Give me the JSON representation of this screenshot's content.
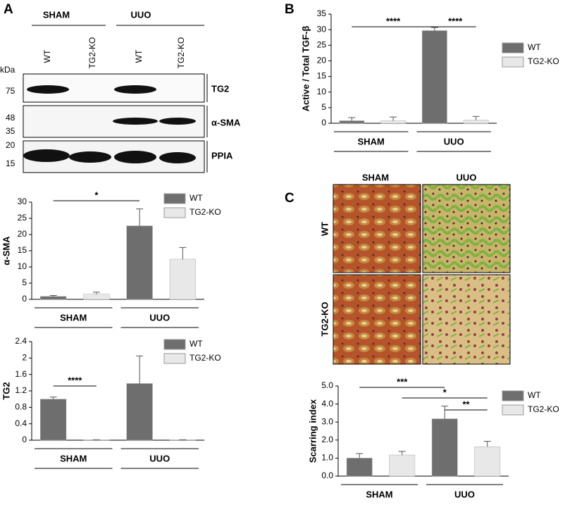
{
  "panels": [
    "A",
    "B",
    "C"
  ],
  "blot": {
    "groups": [
      "SHAM",
      "UUO"
    ],
    "lanes": [
      "WT",
      "TG2-KO",
      "WT",
      "TG2-KO"
    ],
    "unit": "kDa",
    "markers": [
      75,
      48,
      35,
      20,
      15
    ],
    "bands": [
      "TG2",
      "α-SMA",
      "PPIA"
    ]
  },
  "histology": {
    "columns": [
      "SHAM",
      "UUO"
    ],
    "rows": [
      "WT",
      "TG2-KO"
    ]
  },
  "chart_data": [
    {
      "type": "bar",
      "ylabel": "α-SMA",
      "categories": [
        "SHAM",
        "UUO"
      ],
      "series": [
        {
          "name": "WT",
          "color": "#6e6e6e",
          "values": [
            0.9,
            22.7
          ],
          "errors": [
            0.3,
            5.2
          ]
        },
        {
          "name": "TG2-KO",
          "color": "#e8e8e8",
          "values": [
            1.6,
            12.4
          ],
          "errors": [
            0.6,
            3.6
          ]
        }
      ],
      "ylim": [
        0,
        30
      ],
      "yticks": [
        0,
        5,
        10,
        15,
        20,
        25,
        30
      ],
      "annotations": [
        "*"
      ]
    },
    {
      "type": "bar",
      "ylabel": "TG2",
      "categories": [
        "SHAM",
        "UUO"
      ],
      "series": [
        {
          "name": "WT",
          "color": "#6e6e6e",
          "values": [
            1.0,
            1.38
          ],
          "errors": [
            0.05,
            0.67
          ]
        },
        {
          "name": "TG2-KO",
          "color": "#e8e8e8",
          "values": [
            0.01,
            0.01
          ],
          "errors": [
            0,
            0
          ]
        }
      ],
      "ylim": [
        0,
        2.4
      ],
      "yticks": [
        0,
        0.4,
        0.8,
        1.2,
        1.6,
        2,
        2.4
      ],
      "annotations": [
        "****"
      ]
    },
    {
      "type": "bar",
      "ylabel": "Active / Total TGF-β",
      "categories": [
        "SHAM",
        "UUO"
      ],
      "series": [
        {
          "name": "WT",
          "color": "#6e6e6e",
          "values": [
            0.8,
            29.7
          ],
          "errors": [
            1.0,
            1.0
          ]
        },
        {
          "name": "TG2-KO",
          "color": "#e8e8e8",
          "values": [
            0.8,
            1.0
          ],
          "errors": [
            1.2,
            1.2
          ]
        }
      ],
      "ylim": [
        0,
        35
      ],
      "yticks": [
        0,
        5,
        10,
        15,
        20,
        25,
        30,
        35
      ],
      "annotations": [
        "****",
        "****"
      ]
    },
    {
      "type": "bar",
      "ylabel": "Scarring index",
      "categories": [
        "SHAM",
        "UUO"
      ],
      "series": [
        {
          "name": "WT",
          "color": "#6e6e6e",
          "values": [
            1.0,
            3.18
          ],
          "errors": [
            0.25,
            0.7
          ]
        },
        {
          "name": "TG2-KO",
          "color": "#e8e8e8",
          "values": [
            1.17,
            1.63
          ],
          "errors": [
            0.2,
            0.3
          ]
        }
      ],
      "ylim": [
        0,
        5
      ],
      "yticks": [
        {
          "value": 0,
          "label": "0.0"
        },
        {
          "value": 1,
          "label": "1.0"
        },
        {
          "value": 2,
          "label": "2.0"
        },
        {
          "value": 3,
          "label": "3.0"
        },
        {
          "value": 4,
          "label": "4.0"
        },
        {
          "value": 5,
          "label": "5.0"
        }
      ],
      "annotations": [
        "***",
        "*",
        "**"
      ]
    }
  ]
}
